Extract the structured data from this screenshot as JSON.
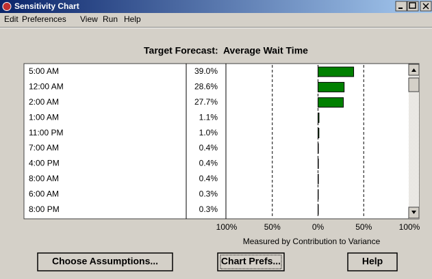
{
  "window": {
    "title": "Sensitivity Chart",
    "menu": [
      "Edit",
      "Preferences",
      "View",
      "Run",
      "Help"
    ],
    "buttons": [
      "Choose Assumptions...",
      "Chart Prefs...",
      "Help"
    ]
  },
  "chart_data": {
    "type": "bar",
    "orientation": "horizontal",
    "title": "Target Forecast:  Average Wait Time",
    "categories": [
      "5:00 AM",
      "12:00 AM",
      "2:00 AM",
      "1:00 AM",
      "11:00 PM",
      "7:00 AM",
      "4:00 PM",
      "8:00 AM",
      "6:00 AM",
      "8:00 PM"
    ],
    "values": [
      39.0,
      28.6,
      27.7,
      1.1,
      1.0,
      0.4,
      0.4,
      0.4,
      0.3,
      0.3
    ],
    "value_labels": [
      "39.0%",
      "28.6%",
      "27.7%",
      "1.1%",
      "1.0%",
      "0.4%",
      "0.4%",
      "0.4%",
      "0.3%",
      "0.3%"
    ],
    "color": "#008000",
    "xlim": [
      -100,
      100
    ],
    "xticks": [
      {
        "value": -100,
        "label": "100%"
      },
      {
        "value": -50,
        "label": "50%"
      },
      {
        "value": 0,
        "label": "0%"
      },
      {
        "value": 50,
        "label": "50%"
      },
      {
        "value": 100,
        "label": "100%"
      }
    ],
    "xlabel": "Measured by Contribution to Variance",
    "grid": true
  }
}
